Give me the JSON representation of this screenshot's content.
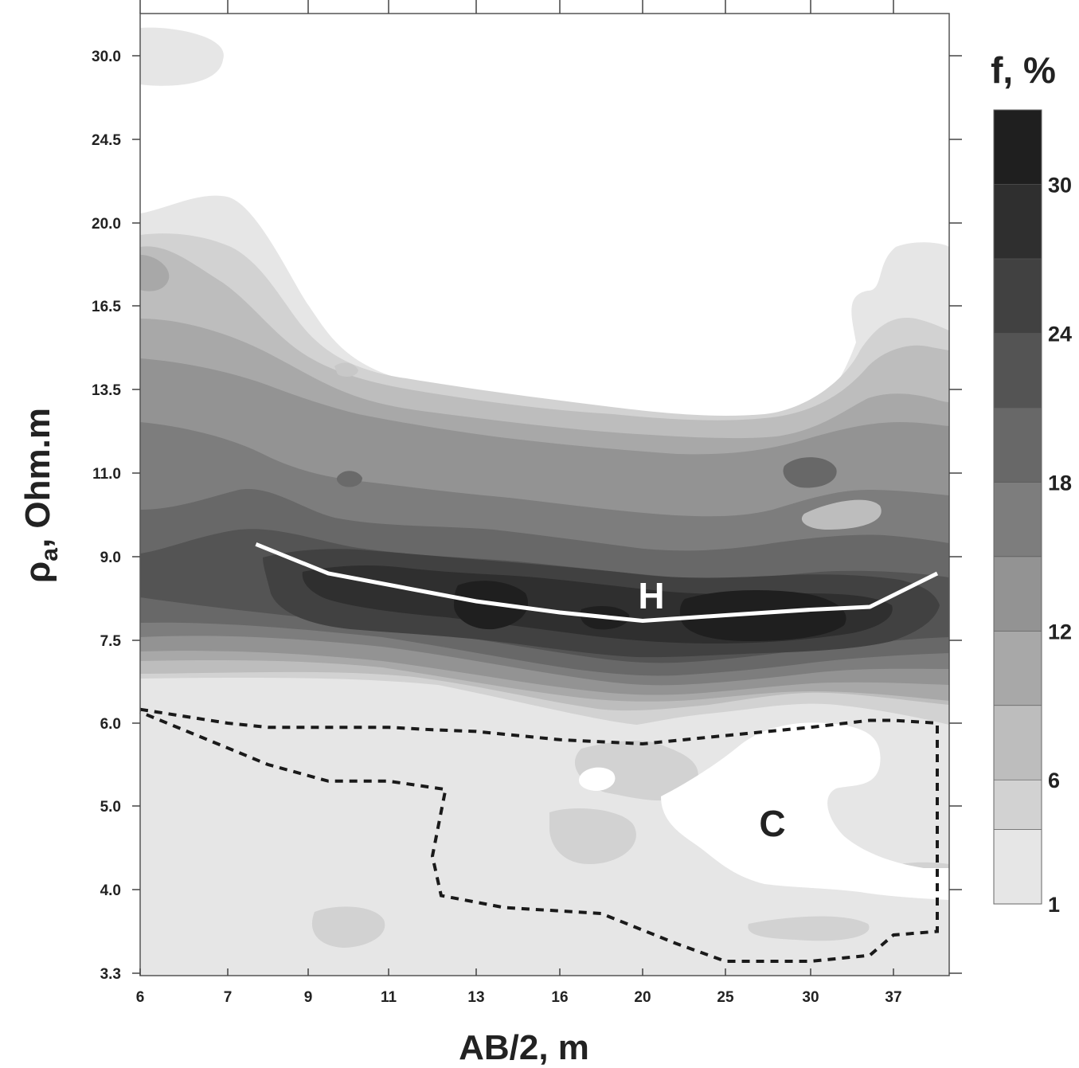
{
  "chart_data": {
    "type": "heatmap",
    "xlabel": "AB/2, m",
    "ylabel_main": "ρ",
    "ylabel_sub": "a",
    "ylabel_rest": ", Ohm.m",
    "x_ticks": [
      "6",
      "7",
      "9",
      "11",
      "13",
      "16",
      "20",
      "25",
      "30",
      "37"
    ],
    "y_ticks": [
      "3.3",
      "4.0",
      "5.0",
      "6.0",
      "7.5",
      "9.0",
      "11.0",
      "13.5",
      "16.5",
      "20.0",
      "24.5",
      "30.0"
    ],
    "colorbar": {
      "title": "f, %",
      "labels": [
        "1",
        "6",
        "12",
        "18",
        "24",
        "30"
      ],
      "levels": [
        1,
        4,
        6,
        9,
        12,
        15,
        18,
        21,
        24,
        27,
        30,
        33
      ],
      "colors": [
        "#e6e6e6",
        "#d2d2d2",
        "#bdbdbd",
        "#a8a8a8",
        "#939393",
        "#7d7d7d",
        "#686868",
        "#545454",
        "#414141",
        "#2f2f2f",
        "#1f1f1f"
      ]
    },
    "annotations": {
      "h_label": "H",
      "c_label": "C"
    },
    "h_line": {
      "x": [
        7.7,
        9.5,
        13,
        16,
        20,
        25,
        30,
        35,
        40.7
      ],
      "y": [
        9.3,
        8.7,
        8.2,
        8.0,
        7.85,
        7.95,
        8.05,
        8.1,
        8.7
      ]
    },
    "c_boundary": {
      "x": [
        6,
        7,
        8,
        9,
        10,
        11,
        12,
        13,
        16,
        20,
        25,
        30,
        35,
        37,
        40.7,
        40.7,
        37,
        35,
        30,
        25,
        22,
        18,
        14,
        12.2,
        12,
        12.3,
        11,
        9.5,
        8,
        7,
        6
      ],
      "y": [
        6.25,
        6.0,
        5.95,
        5.95,
        5.95,
        5.95,
        5.92,
        5.9,
        5.8,
        5.75,
        5.85,
        5.95,
        6.05,
        6.05,
        6.0,
        3.65,
        3.62,
        3.45,
        3.4,
        3.4,
        3.55,
        3.8,
        3.85,
        3.95,
        4.4,
        5.2,
        5.3,
        5.3,
        5.5,
        5.7,
        6.2
      ]
    },
    "grid": false
  }
}
